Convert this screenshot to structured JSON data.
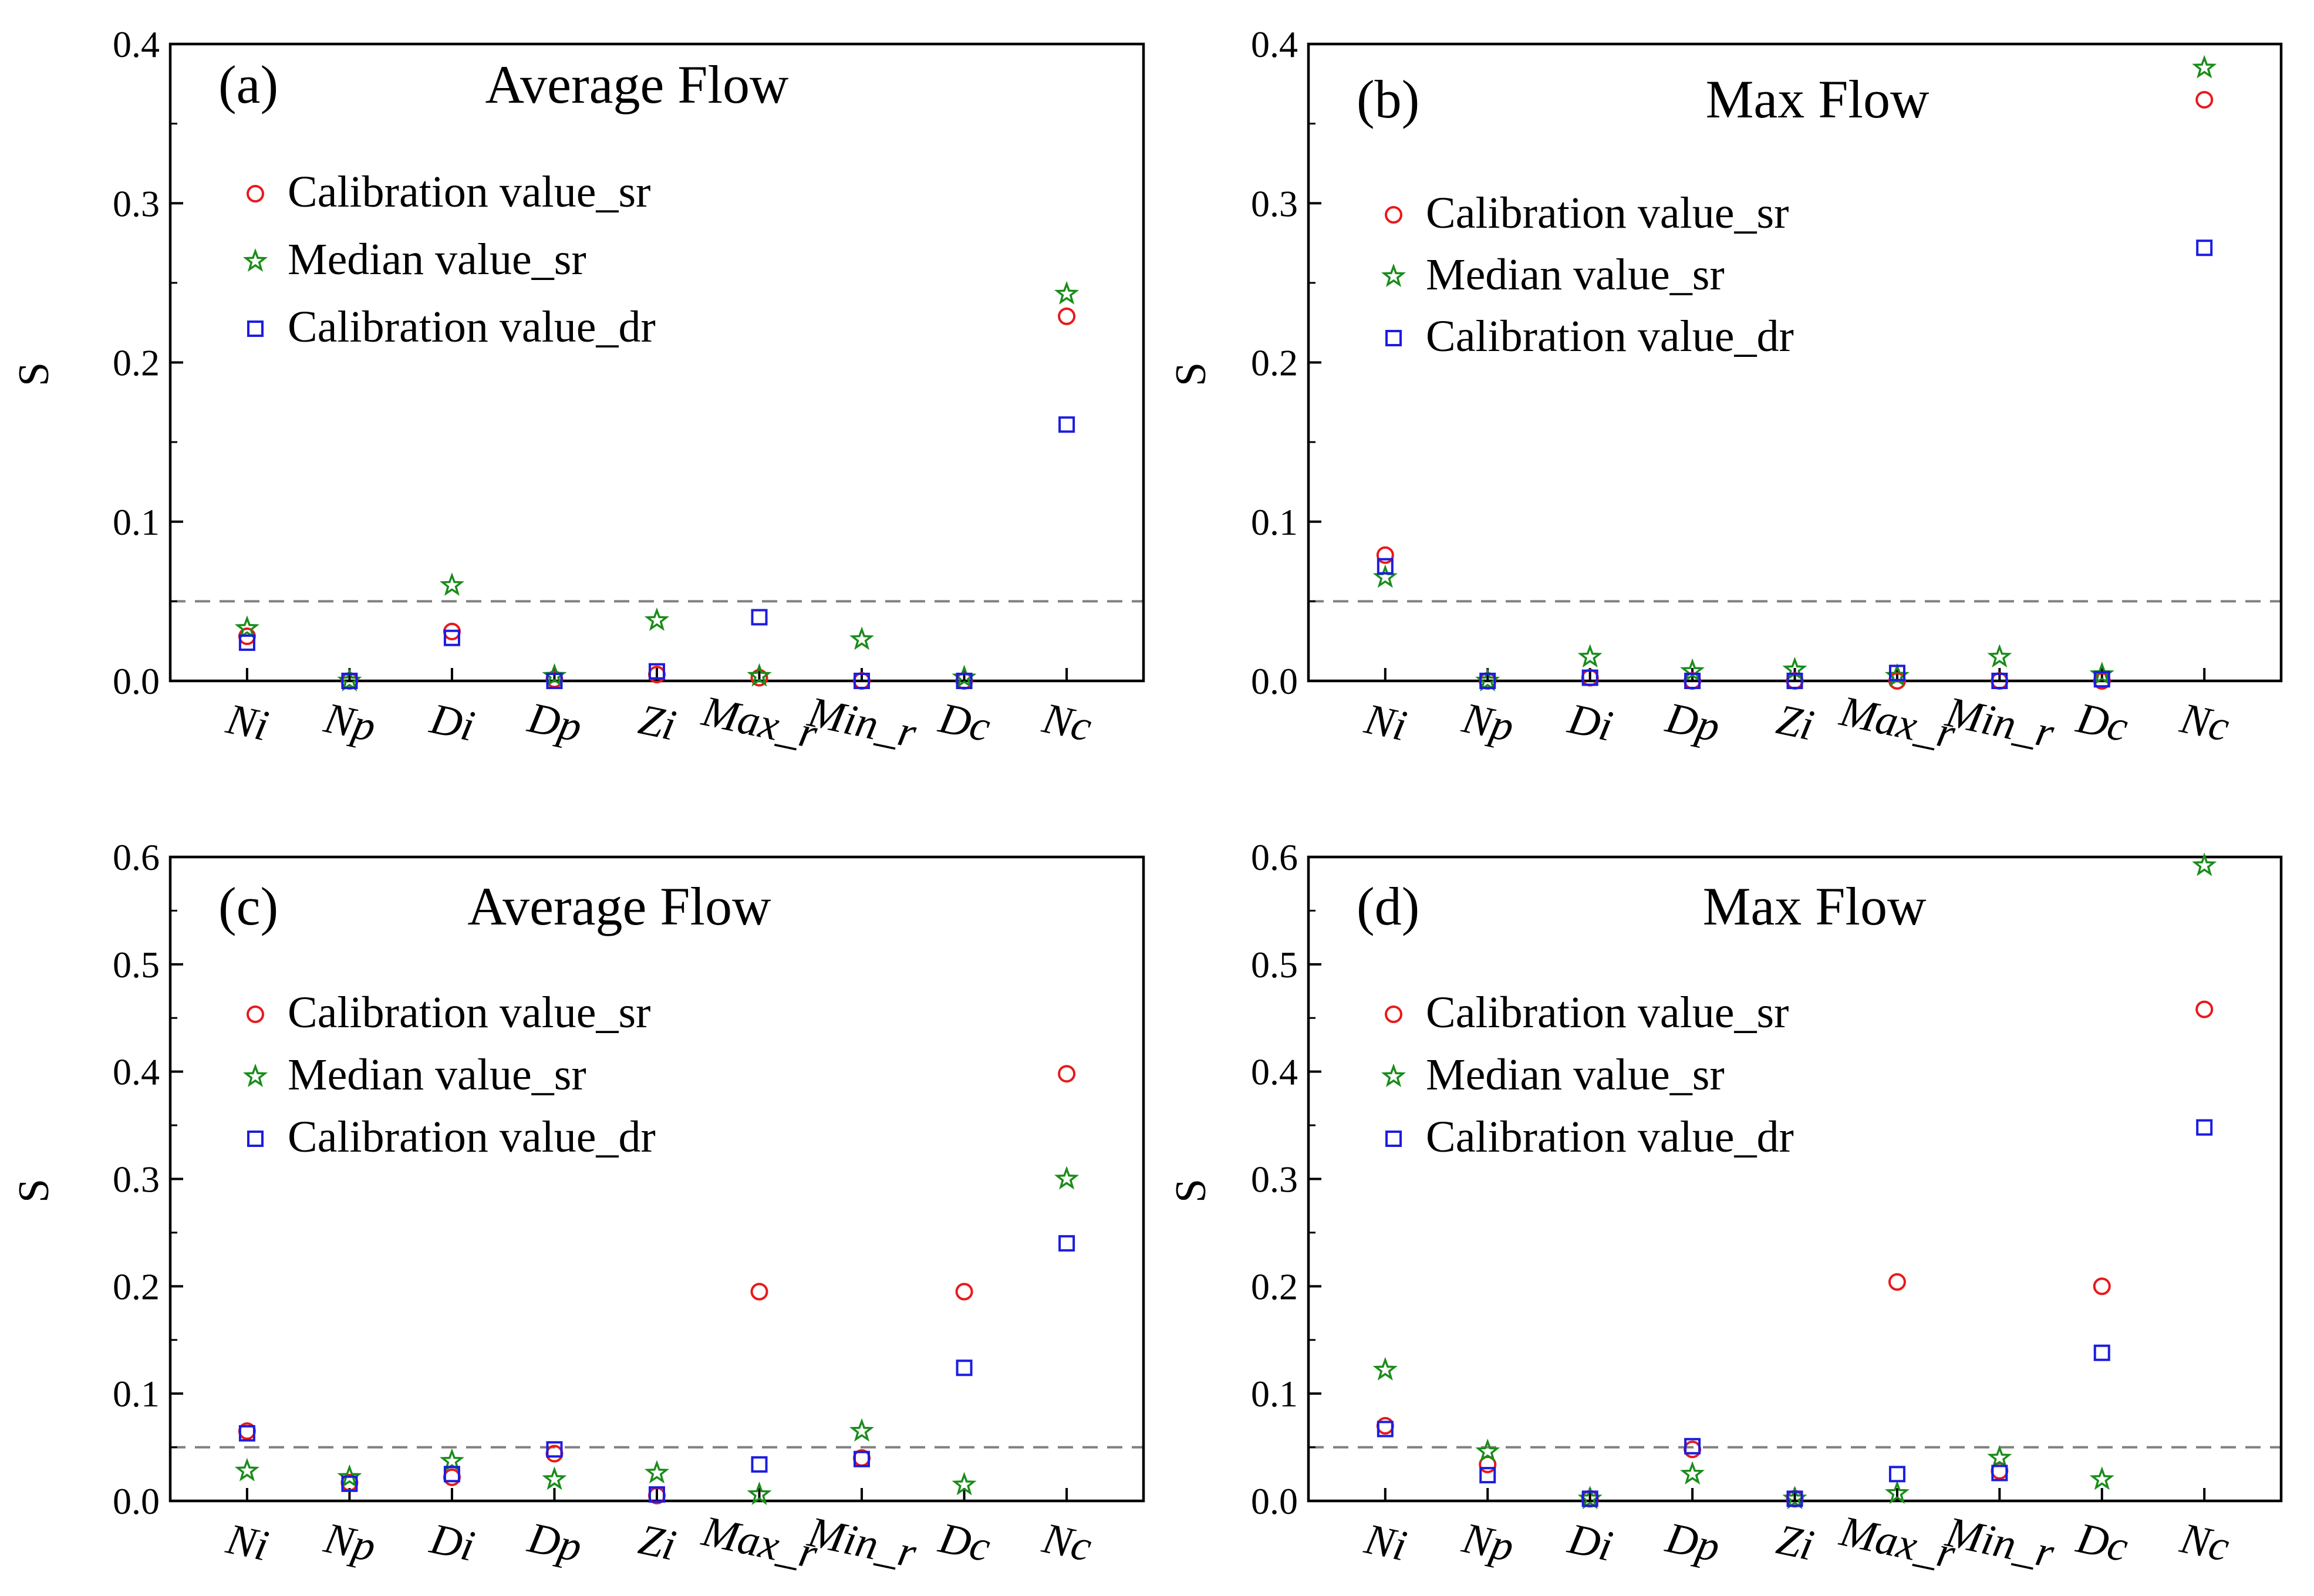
{
  "figure": {
    "ylabel": "S"
  },
  "chart_data": [
    {
      "type": "scatter",
      "panel": "(a)",
      "title": "Average Flow",
      "categories": [
        "Ni",
        "Np",
        "Di",
        "Dp",
        "Zi",
        "Max_r",
        "Min_r",
        "Dc",
        "Nc"
      ],
      "ylabel": "S",
      "ylim": [
        0,
        0.4
      ],
      "yticks": [
        "0.0",
        "0.1",
        "0.2",
        "0.3",
        "0.4"
      ],
      "reference_line": 0.05,
      "legend_position": "upper-left",
      "series": [
        {
          "name": "Calibration value_sr",
          "marker": "circle",
          "color": "#e8191c",
          "values": [
            0.028,
            0.0,
            0.031,
            0.001,
            0.004,
            0.002,
            0.0,
            0.0,
            0.229
          ]
        },
        {
          "name": "Median value_sr",
          "marker": "star",
          "color": "#1a8c1a",
          "values": [
            0.033,
            0.0,
            0.06,
            0.003,
            0.038,
            0.003,
            0.026,
            0.002,
            0.243
          ]
        },
        {
          "name": "Calibration value_dr",
          "marker": "square",
          "color": "#1c1ce0",
          "values": [
            0.024,
            0.0,
            0.027,
            0.0,
            0.006,
            0.04,
            0.0,
            0.0,
            0.161
          ]
        }
      ]
    },
    {
      "type": "scatter",
      "panel": "(b)",
      "title": "Max Flow",
      "categories": [
        "Ni",
        "Np",
        "Di",
        "Dp",
        "Zi",
        "Max_r",
        "Min_r",
        "Dc",
        "Nc"
      ],
      "ylabel": "S",
      "ylim": [
        0,
        0.4
      ],
      "yticks": [
        "0.0",
        "0.1",
        "0.2",
        "0.3",
        "0.4"
      ],
      "reference_line": 0.05,
      "legend_position": "upper-left",
      "series": [
        {
          "name": "Calibration value_sr",
          "marker": "circle",
          "color": "#e8191c",
          "values": [
            0.079,
            0.0,
            0.002,
            0.0,
            0.0,
            0.0,
            0.0,
            0.0,
            0.365
          ]
        },
        {
          "name": "Median value_sr",
          "marker": "star",
          "color": "#1a8c1a",
          "values": [
            0.065,
            0.0,
            0.015,
            0.006,
            0.007,
            0.003,
            0.015,
            0.004,
            0.385
          ]
        },
        {
          "name": "Calibration value_dr",
          "marker": "square",
          "color": "#1c1ce0",
          "values": [
            0.072,
            0.0,
            0.002,
            0.0,
            0.0,
            0.005,
            0.0,
            0.001,
            0.272
          ]
        }
      ]
    },
    {
      "type": "scatter",
      "panel": "(c)",
      "title": "Average Flow",
      "categories": [
        "Ni",
        "Np",
        "Di",
        "Dp",
        "Zi",
        "Max_r",
        "Min_r",
        "Dc",
        "Nc"
      ],
      "ylabel": "S",
      "ylim": [
        0,
        0.6
      ],
      "yticks": [
        "0.0",
        "0.1",
        "0.2",
        "0.3",
        "0.4",
        "0.5",
        "0.6"
      ],
      "reference_line": 0.05,
      "legend_position": "upper-left",
      "series": [
        {
          "name": "Calibration value_sr",
          "marker": "circle",
          "color": "#e8191c",
          "values": [
            0.065,
            0.017,
            0.022,
            0.044,
            0.005,
            0.195,
            0.04,
            0.195,
            0.398
          ]
        },
        {
          "name": "Median value_sr",
          "marker": "star",
          "color": "#1a8c1a",
          "values": [
            0.028,
            0.022,
            0.037,
            0.02,
            0.026,
            0.006,
            0.065,
            0.015,
            0.3
          ]
        },
        {
          "name": "Calibration value_dr",
          "marker": "square",
          "color": "#1c1ce0",
          "values": [
            0.063,
            0.016,
            0.025,
            0.048,
            0.006,
            0.034,
            0.039,
            0.124,
            0.24
          ]
        }
      ]
    },
    {
      "type": "scatter",
      "panel": "(d)",
      "title": "Max Flow",
      "categories": [
        "Ni",
        "Np",
        "Di",
        "Dp",
        "Zi",
        "Max_r",
        "Min_r",
        "Dc",
        "Nc"
      ],
      "ylabel": "S",
      "ylim": [
        0,
        0.6
      ],
      "yticks": [
        "0.0",
        "0.1",
        "0.2",
        "0.3",
        "0.4",
        "0.5",
        "0.6"
      ],
      "reference_line": 0.05,
      "legend_position": "upper-left",
      "series": [
        {
          "name": "Calibration value_sr",
          "marker": "circle",
          "color": "#e8191c",
          "values": [
            0.07,
            0.034,
            0.002,
            0.048,
            0.002,
            0.204,
            0.028,
            0.2,
            0.458
          ]
        },
        {
          "name": "Median value_sr",
          "marker": "star",
          "color": "#1a8c1a",
          "values": [
            0.122,
            0.046,
            0.002,
            0.025,
            0.002,
            0.007,
            0.04,
            0.02,
            0.592
          ]
        },
        {
          "name": "Calibration value_dr",
          "marker": "square",
          "color": "#1c1ce0",
          "values": [
            0.067,
            0.024,
            0.002,
            0.051,
            0.002,
            0.025,
            0.026,
            0.138,
            0.348
          ]
        }
      ]
    }
  ]
}
